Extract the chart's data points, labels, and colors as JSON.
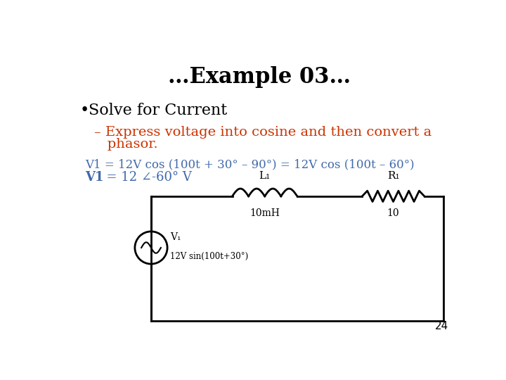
{
  "title": "…Example 03…",
  "title_fontsize": 22,
  "title_color": "#000000",
  "bullet_text": "Solve for Current",
  "bullet_color": "#000000",
  "bullet_fontsize": 16,
  "sub_bullet_line1": "– Express voltage into cosine and then convert a",
  "sub_bullet_line2": "   phasor.",
  "sub_bullet_color": "#CC3300",
  "sub_bullet_fontsize": 14,
  "eq1_text": "V1 = 12V cos (100t + 30° – 90°) = 12V cos (100t – 60°)",
  "eq1_color": "#4169AA",
  "eq1_fontsize": 12,
  "eq2_bold": "V1",
  "eq2_rest": "  = 12 ∠-60° V",
  "eq2_color": "#4169AA",
  "eq2_fontsize": 13,
  "page_number": "24",
  "bg_color": "#FFFFFF",
  "circuit": {
    "inductor_label": "L₁",
    "inductor_value": "10mH",
    "resistor_label": "R₁",
    "resistor_value": "10",
    "source_label": "V₁",
    "source_value": "12V sin(100t+30°)"
  }
}
